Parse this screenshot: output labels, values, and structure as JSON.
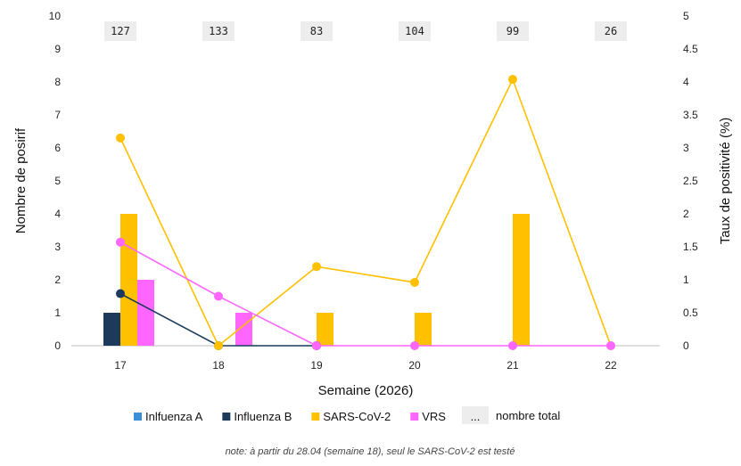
{
  "chart_data": {
    "type": "bar",
    "x": [
      17,
      18,
      19,
      20,
      21,
      22
    ],
    "xlabel": "Semaine (2026)",
    "ylabel": "Nombre de posirif",
    "y2label": "Taux de positivité (%)",
    "ylim": [
      0,
      10
    ],
    "y2lim": [
      0,
      5
    ],
    "yticks": [
      0,
      1,
      2,
      3,
      4,
      5,
      6,
      7,
      8,
      9,
      10
    ],
    "y2ticks": [
      "0",
      "0.5",
      "1",
      "1.5",
      "2",
      "2.5",
      "3",
      "3.5",
      "4",
      "4.5",
      "5"
    ],
    "grid": false,
    "legend_position": "bottom",
    "series": [
      {
        "name": "Inlfuenza A",
        "color": "#3a8fd6",
        "values": [
          0,
          0,
          0,
          0,
          0,
          0
        ]
      },
      {
        "name": "Influenza B",
        "color": "#1b3a5c",
        "values": [
          1,
          0,
          0,
          0,
          0,
          0
        ]
      },
      {
        "name": "SARS-CoV-2",
        "color": "#ffc000",
        "values": [
          4,
          0,
          1,
          1,
          4,
          0
        ]
      },
      {
        "name": "VRS",
        "color": "#ff66ff",
        "values": [
          2,
          1,
          0,
          0,
          0,
          0
        ]
      }
    ],
    "rate_series": [
      {
        "name": "Influenza B",
        "color": "#1b3a5c",
        "values": [
          0.79,
          0,
          0,
          null,
          null,
          null
        ]
      },
      {
        "name": "SARS-CoV-2",
        "color": "#ffc000",
        "values": [
          3.15,
          0,
          1.2,
          0.96,
          4.04,
          0
        ]
      },
      {
        "name": "VRS",
        "color": "#ff66ff",
        "values": [
          1.57,
          0.75,
          0,
          0,
          0,
          0
        ]
      }
    ],
    "totals": {
      "name": "nombre total",
      "legend_symbol": "...",
      "values": [
        "127",
        "133",
        "83",
        "104",
        "99",
        "26"
      ]
    },
    "note": "note: à partir du 28.04 (semaine 18), seul le SARS-CoV-2 est testé"
  }
}
